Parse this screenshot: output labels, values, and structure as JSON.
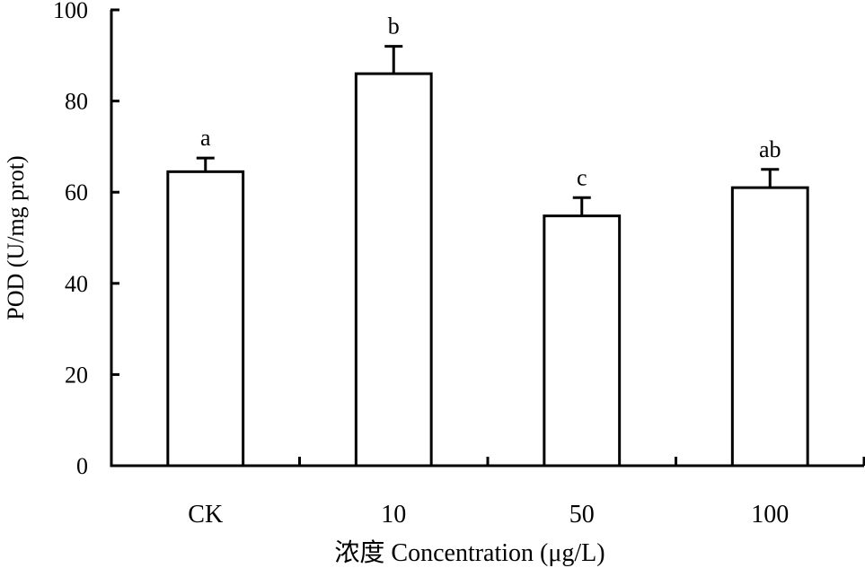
{
  "chart_data": {
    "type": "bar",
    "categories": [
      "CK",
      "10",
      "50",
      "100"
    ],
    "values": [
      64.5,
      86.0,
      54.8,
      61.0
    ],
    "errors": [
      3.0,
      6.0,
      4.0,
      4.0
    ],
    "significance": [
      "a",
      "b",
      "c",
      "ab"
    ],
    "xlabel": "浓度 Concentration (μg/L)",
    "ylabel": "POD (U/mg prot)",
    "ylim": [
      0,
      100
    ],
    "yticks": [
      0,
      20,
      40,
      60,
      80,
      100
    ],
    "grid": false,
    "legend": "none"
  }
}
